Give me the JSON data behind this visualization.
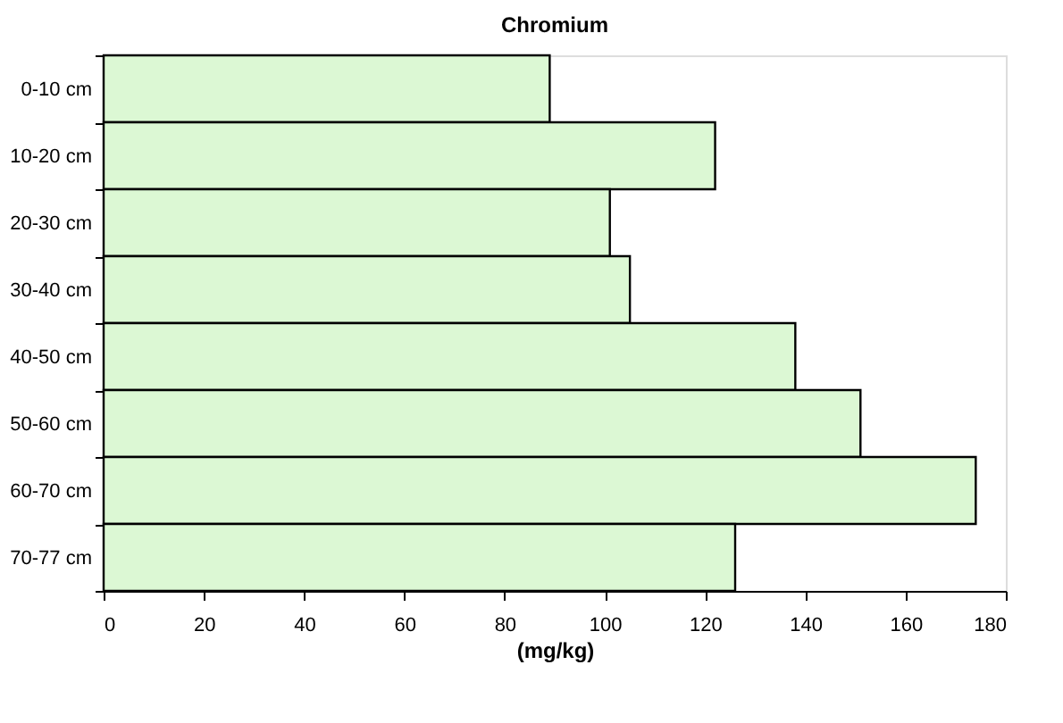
{
  "chart_data": {
    "type": "bar",
    "orientation": "horizontal",
    "title": "Chromium",
    "xlabel": "(mg/kg)",
    "categories": [
      "0-10 cm",
      "10-20 cm",
      "20-30 cm",
      "30-40 cm",
      "40-50 cm",
      "50-60 cm",
      "60-70 cm",
      "70-77 cm"
    ],
    "values": [
      89,
      122,
      101,
      105,
      138,
      151,
      174,
      126
    ],
    "color": "#dcf8d4",
    "xlim": [
      0,
      180
    ],
    "xticks": [
      0,
      20,
      40,
      60,
      80,
      100,
      120,
      140,
      160,
      180
    ],
    "grid": false
  }
}
